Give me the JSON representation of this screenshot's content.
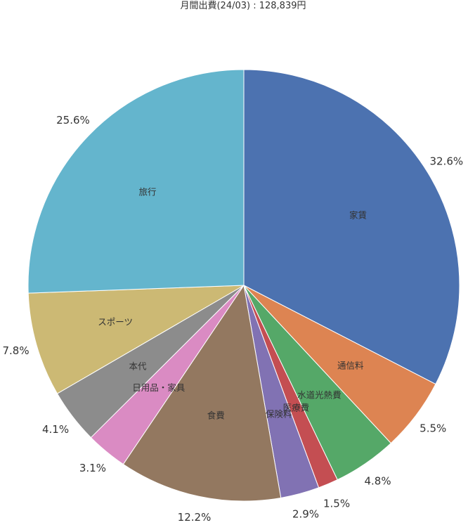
{
  "chart_data": {
    "type": "pie",
    "title": "月間出費(24/03) : 128,839円",
    "start_angle_deg": 0,
    "direction": "clockwise",
    "slices": [
      {
        "label": "家賃",
        "value": 32.6,
        "pct_label": "32.6%",
        "color": "#4c72b0"
      },
      {
        "label": "通信料",
        "value": 5.5,
        "pct_label": "5.5%",
        "color": "#dd8452"
      },
      {
        "label": "水道光熱費",
        "value": 4.8,
        "pct_label": "4.8%",
        "color": "#55a868"
      },
      {
        "label": "医療費",
        "value": 1.5,
        "pct_label": "1.5%",
        "color": "#c44e52"
      },
      {
        "label": "保険料",
        "value": 2.9,
        "pct_label": "2.9%",
        "color": "#8172b3"
      },
      {
        "label": "食費",
        "value": 12.2,
        "pct_label": "12.2%",
        "color": "#937860"
      },
      {
        "label": "日用品・家具",
        "value": 3.1,
        "pct_label": "3.1%",
        "color": "#da8bc3"
      },
      {
        "label": "本代",
        "value": 4.1,
        "pct_label": "4.1%",
        "color": "#8c8c8c"
      },
      {
        "label": "スポーツ",
        "value": 7.8,
        "pct_label": "7.8%",
        "color": "#ccb974"
      },
      {
        "label": "旅行",
        "value": 25.6,
        "pct_label": "25.6%",
        "color": "#64b5cd"
      }
    ]
  }
}
